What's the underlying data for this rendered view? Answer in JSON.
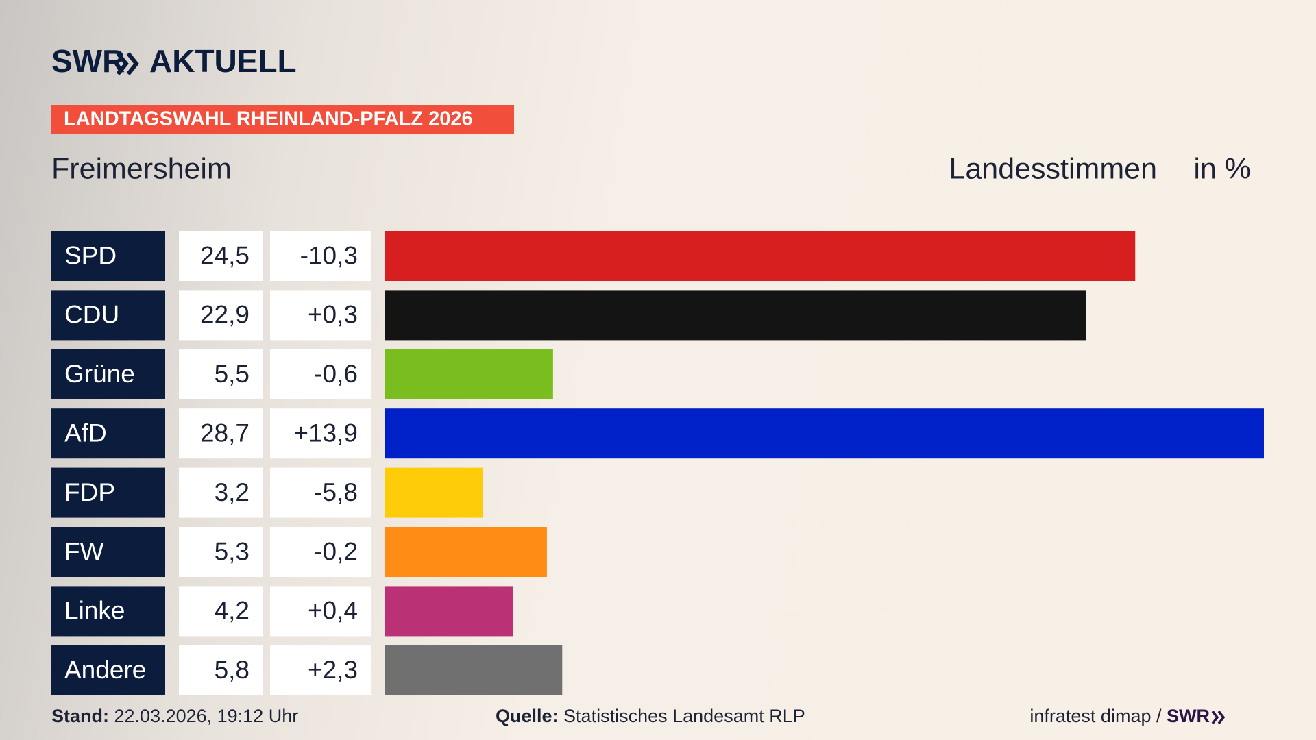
{
  "chart_data": {
    "type": "bar",
    "brand": "SWR",
    "channel": "AKTUELL",
    "tag": "LANDTAGSWAHL RHEINLAND-PFALZ 2026",
    "title": "Freimersheim",
    "measure": "Landesstimmen",
    "unit": "in %",
    "categories": [
      "SPD",
      "CDU",
      "Grüne",
      "AfD",
      "FDP",
      "FW",
      "Linke",
      "Andere"
    ],
    "values": [
      24.5,
      22.9,
      5.5,
      28.7,
      3.2,
      5.3,
      4.2,
      5.8
    ],
    "value_labels": [
      "24,5",
      "22,9",
      "5,5",
      "28,7",
      "3,2",
      "5,3",
      "4,2",
      "5,8"
    ],
    "changes": [
      -10.3,
      0.3,
      -0.6,
      13.9,
      -5.8,
      -0.2,
      0.4,
      2.3
    ],
    "change_labels": [
      "-10,3",
      "+0,3",
      "-0,6",
      "+13,9",
      "-5,8",
      "-0,2",
      "+0,4",
      "+2,3"
    ],
    "colors": [
      "#d71f1f",
      "#141414",
      "#7abd1e",
      "#0021c8",
      "#ffcc0a",
      "#ff8c14",
      "#bb3175",
      "#707070"
    ],
    "xlim": [
      0,
      28.7
    ],
    "footer": {
      "stand_label": "Stand:",
      "stand": "22.03.2026, 19:12 Uhr",
      "source_label": "Quelle:",
      "source": "Statistisches Landesamt RLP",
      "credit": "infratest dimap /",
      "credit_brand": "SWR"
    }
  }
}
